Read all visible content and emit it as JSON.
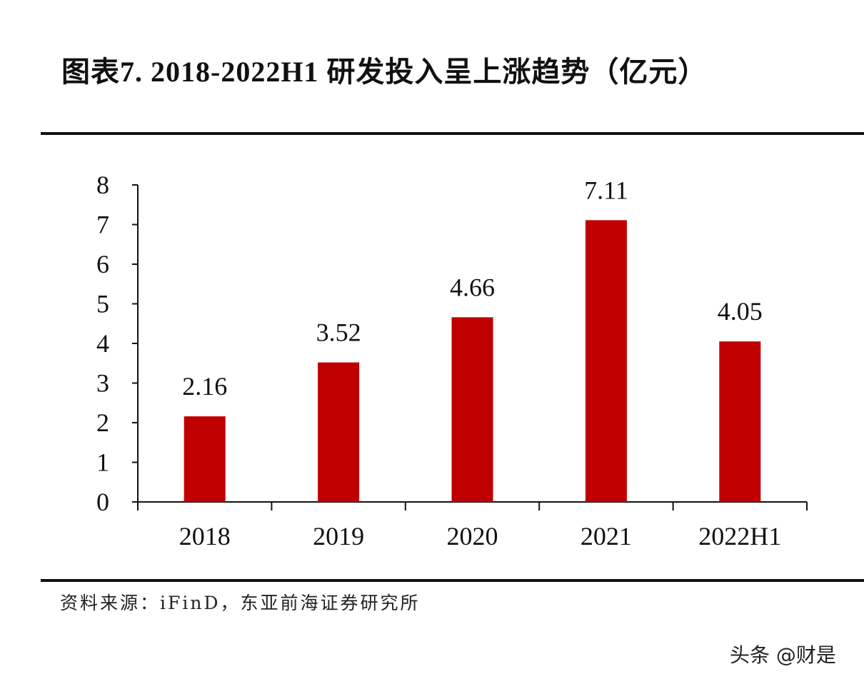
{
  "title": "图表7.    2018-2022H1 研发投入呈上涨趋势（亿元）",
  "source": "资料来源：iFinD，东亚前海证券研究所",
  "watermark": "头条 @财是",
  "chart_data": {
    "type": "bar",
    "title": "图表7.    2018-2022H1 研发投入呈上涨趋势（亿元）",
    "categories": [
      "2018",
      "2019",
      "2020",
      "2021",
      "2022H1"
    ],
    "values": [
      2.16,
      3.52,
      4.66,
      7.11,
      4.05
    ],
    "data_labels": [
      "2.16",
      "3.52",
      "4.66",
      "7.11",
      "4.05"
    ],
    "ylim": [
      0,
      8
    ],
    "yticks": [
      "0",
      "1",
      "2",
      "3",
      "4",
      "5",
      "6",
      "7",
      "8"
    ],
    "grid": false,
    "legend": "none",
    "bar_color": "#c00000"
  }
}
